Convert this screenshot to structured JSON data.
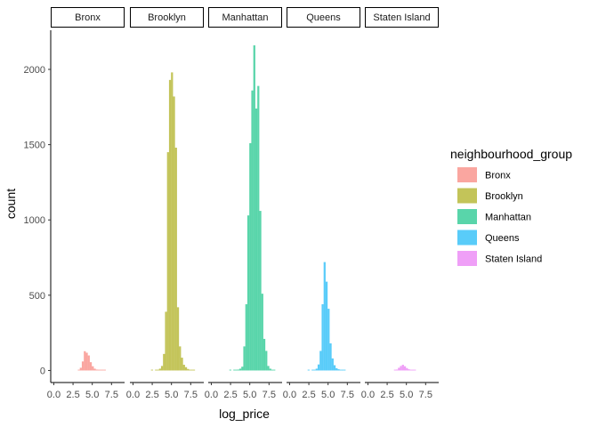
{
  "chart_data": {
    "type": "bar",
    "chart_kind": "faceted histogram",
    "xlabel": "log_price",
    "ylabel": "count",
    "xlim": [
      -0.4,
      9.2
    ],
    "ylim": [
      -80,
      2260
    ],
    "x_ticks": [
      0,
      2.5,
      5,
      7.5
    ],
    "x_tick_labels": [
      "0.0",
      "2.5",
      "5.0",
      "7.5"
    ],
    "y_ticks": [
      0,
      500,
      1000,
      1500,
      2000
    ],
    "y_tick_labels": [
      "0",
      "500",
      "1000",
      "1500",
      "2000"
    ],
    "bin_width": 0.26,
    "bins_x": [
      2.47,
      2.73,
      2.99,
      3.25,
      3.51,
      3.77,
      4.03,
      4.29,
      4.55,
      4.81,
      5.07,
      5.33,
      5.59,
      5.85,
      6.11,
      6.37,
      6.63,
      6.89,
      7.15,
      7.41,
      7.67,
      7.93,
      8.19
    ],
    "grid": false,
    "legend_title": "neighbourhood_group",
    "legend_position": "right",
    "facets": [
      {
        "name": "Bronx",
        "color": "#F8766D",
        "values": [
          0,
          0,
          0,
          2,
          18,
          60,
          128,
          118,
          100,
          55,
          28,
          12,
          6,
          4,
          2,
          1,
          1,
          0,
          0,
          0,
          0,
          0,
          0
        ]
      },
      {
        "name": "Brooklyn",
        "color": "#A3A500",
        "values": [
          1,
          0,
          2,
          5,
          12,
          30,
          110,
          390,
          1450,
          1930,
          1980,
          1820,
          1480,
          420,
          160,
          85,
          38,
          22,
          10,
          5,
          3,
          1,
          0
        ]
      },
      {
        "name": "Manhattan",
        "color": "#00BF7D",
        "values": [
          1,
          0,
          1,
          2,
          6,
          12,
          25,
          160,
          440,
          1030,
          1510,
          1860,
          2160,
          1740,
          1890,
          1060,
          510,
          210,
          130,
          30,
          12,
          5,
          1
        ]
      },
      {
        "name": "Queens",
        "color": "#00B0F6",
        "values": [
          1,
          0,
          1,
          3,
          12,
          40,
          130,
          440,
          720,
          590,
          410,
          180,
          80,
          35,
          15,
          8,
          4,
          2,
          1,
          0,
          0,
          0,
          0
        ]
      },
      {
        "name": "Staten Island",
        "color": "#E76BF3",
        "values": [
          0,
          0,
          0,
          0,
          2,
          6,
          18,
          30,
          38,
          28,
          16,
          8,
          4,
          2,
          1,
          0,
          0,
          0,
          0,
          0,
          0,
          0,
          0
        ]
      }
    ]
  }
}
